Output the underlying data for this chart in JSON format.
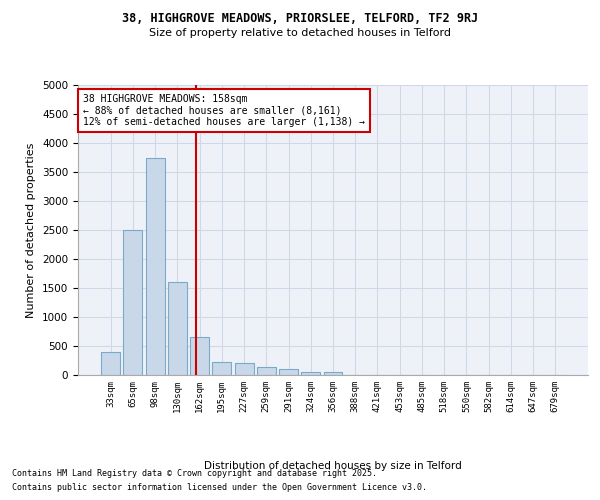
{
  "title1": "38, HIGHGROVE MEADOWS, PRIORSLEE, TELFORD, TF2 9RJ",
  "title2": "Size of property relative to detached houses in Telford",
  "xlabel": "Distribution of detached houses by size in Telford",
  "ylabel": "Number of detached properties",
  "categories": [
    "33sqm",
    "65sqm",
    "98sqm",
    "130sqm",
    "162sqm",
    "195sqm",
    "227sqm",
    "259sqm",
    "291sqm",
    "324sqm",
    "356sqm",
    "388sqm",
    "421sqm",
    "453sqm",
    "485sqm",
    "518sqm",
    "550sqm",
    "582sqm",
    "614sqm",
    "647sqm",
    "679sqm"
  ],
  "values": [
    400,
    2500,
    3750,
    1600,
    650,
    230,
    200,
    130,
    100,
    60,
    50,
    0,
    0,
    0,
    0,
    0,
    0,
    0,
    0,
    0,
    0
  ],
  "bar_color": "#c8d8e8",
  "bar_edge_color": "#7aaac8",
  "grid_color": "#d0d8e8",
  "bg_color": "#eef2f8",
  "annotation_text": "38 HIGHGROVE MEADOWS: 158sqm\n← 88% of detached houses are smaller (8,161)\n12% of semi-detached houses are larger (1,138) →",
  "annotation_box_color": "#cc0000",
  "footer1": "Contains HM Land Registry data © Crown copyright and database right 2025.",
  "footer2": "Contains public sector information licensed under the Open Government Licence v3.0.",
  "ylim": [
    0,
    5000
  ],
  "yticks": [
    0,
    500,
    1000,
    1500,
    2000,
    2500,
    3000,
    3500,
    4000,
    4500,
    5000
  ],
  "red_line_x": 3.85,
  "figsize": [
    6.0,
    5.0
  ],
  "dpi": 100
}
